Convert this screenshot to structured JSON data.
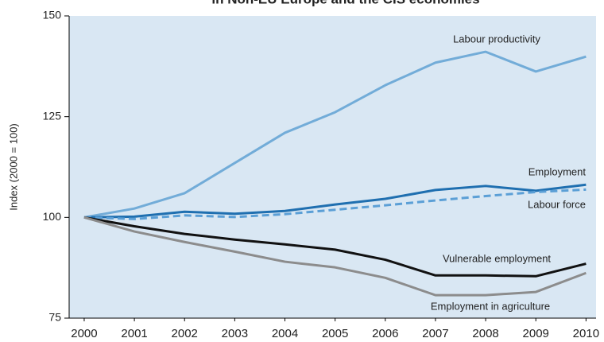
{
  "chart_data": {
    "type": "line",
    "title": "in Non-EU Europe and the CIS economies",
    "y_label": "Index (2000 = 100)",
    "x": [
      2000,
      2001,
      2002,
      2003,
      2004,
      2005,
      2006,
      2007,
      2008,
      2009,
      2010
    ],
    "xlim": [
      1999.7,
      2010.2
    ],
    "xticks": [
      2000,
      2001,
      2002,
      2003,
      2004,
      2005,
      2006,
      2007,
      2008,
      2009,
      2010
    ],
    "ylim": [
      75,
      150
    ],
    "yticks": [
      75,
      100,
      125,
      150
    ],
    "background": "#d9e7f3",
    "series": [
      {
        "name": "Labour productivity",
        "color": "#72acd8",
        "values": [
          100,
          102.2,
          106,
          113.5,
          121,
          126.1,
          132.8,
          138.4,
          141.1,
          136.2,
          139.9
        ]
      },
      {
        "name": "Employment",
        "color": "#1f6fb0",
        "values": [
          100,
          100.2,
          101.4,
          100.9,
          101.6,
          103.2,
          104.6,
          106.8,
          107.8,
          106.6,
          108.1
        ]
      },
      {
        "name": "Labour force",
        "color": "#5b9fd6",
        "line_style": "dashed",
        "values": [
          100,
          99.6,
          100.5,
          100.1,
          100.8,
          101.9,
          103,
          104.2,
          105.3,
          106.3,
          106.9
        ]
      },
      {
        "name": "Vulnerable employment",
        "color": "#111111",
        "values": [
          100,
          97.8,
          95.9,
          94.5,
          93.3,
          92,
          89.5,
          85.6,
          85.6,
          85.4,
          88.5
        ]
      },
      {
        "name": "Employment in agriculture",
        "color": "#8c8c8c",
        "values": [
          100,
          96.5,
          93.9,
          91.5,
          89,
          87.6,
          85,
          80.7,
          80.7,
          81.5,
          86.2
        ]
      }
    ]
  }
}
